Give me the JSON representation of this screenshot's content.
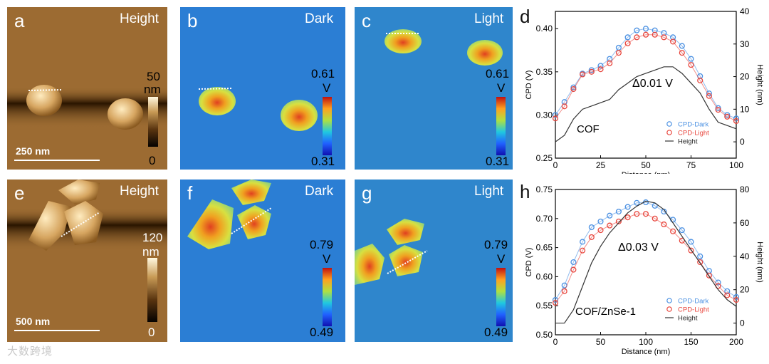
{
  "panels": {
    "a": {
      "letter": "a",
      "title": "Height",
      "cb_max": "50",
      "cb_unit": "nm",
      "cb_min": "0",
      "scale": "250 nm"
    },
    "b": {
      "letter": "b",
      "title": "Dark",
      "cb_max": "0.61",
      "cb_unit": "V",
      "cb_min": "0.31"
    },
    "c": {
      "letter": "c",
      "title": "Light",
      "cb_max": "0.61",
      "cb_unit": "V",
      "cb_min": "0.31"
    },
    "e": {
      "letter": "e",
      "title": "Height",
      "cb_max": "120",
      "cb_unit": "nm",
      "cb_min": "0",
      "scale": "500 nm"
    },
    "f": {
      "letter": "f",
      "title": "Dark",
      "cb_max": "0.79",
      "cb_unit": "V",
      "cb_min": "0.49"
    },
    "g": {
      "letter": "g",
      "title": "Light",
      "cb_max": "0.79",
      "cb_unit": "V",
      "cb_min": "0.49"
    }
  },
  "watermark": "大数跨境",
  "colors": {
    "cpd_dark": "#4a90e2",
    "cpd_light": "#e8453c",
    "height": "#333333",
    "afm_bg": "#9a6a30",
    "kpfm_bg": "#2b7ed4"
  },
  "chart_data": [
    {
      "letter": "d",
      "type": "line",
      "xlabel": "Distance (nm)",
      "ylabel": "CPD (V)",
      "y2label": "Height (nm)",
      "xlim": [
        0,
        100
      ],
      "ylim": [
        0.25,
        0.42
      ],
      "y2lim": [
        -5,
        40
      ],
      "xticks": [
        "0",
        "25",
        "50",
        "75",
        "100"
      ],
      "yticks": [
        "0.25",
        "0.30",
        "0.35",
        "0.40"
      ],
      "y2ticks": [
        "0",
        "10",
        "20",
        "30",
        "40"
      ],
      "annotation": "Δ0.01 V",
      "sample_label": "COF",
      "legend": [
        "CPD-Dark",
        "CPD-Light",
        "Height"
      ],
      "x": [
        0,
        5,
        10,
        15,
        20,
        25,
        30,
        35,
        40,
        45,
        50,
        55,
        60,
        65,
        70,
        75,
        80,
        85,
        90,
        95,
        100
      ],
      "series": [
        {
          "name": "CPD-Dark",
          "values": [
            0.3,
            0.315,
            0.332,
            0.348,
            0.352,
            0.357,
            0.365,
            0.378,
            0.39,
            0.398,
            0.4,
            0.398,
            0.395,
            0.39,
            0.38,
            0.365,
            0.345,
            0.325,
            0.308,
            0.3,
            0.296
          ]
        },
        {
          "name": "CPD-Light",
          "values": [
            0.296,
            0.31,
            0.33,
            0.347,
            0.35,
            0.353,
            0.36,
            0.372,
            0.383,
            0.39,
            0.393,
            0.393,
            0.39,
            0.385,
            0.372,
            0.358,
            0.34,
            0.322,
            0.306,
            0.298,
            0.293
          ]
        },
        {
          "name": "Height",
          "axis": "right",
          "values": [
            0,
            2,
            7,
            10,
            11,
            12,
            13,
            16,
            18,
            20,
            21,
            22,
            23,
            23,
            21,
            18,
            15,
            10,
            6,
            5,
            4
          ]
        }
      ]
    },
    {
      "letter": "h",
      "type": "line",
      "xlabel": "Distance (nm)",
      "ylabel": "CPD (V)",
      "y2label": "Height (nm)",
      "xlim": [
        0,
        200
      ],
      "ylim": [
        0.5,
        0.75
      ],
      "y2lim": [
        -7,
        80
      ],
      "xticks": [
        "0",
        "50",
        "100",
        "150",
        "200"
      ],
      "yticks": [
        "0.50",
        "0.55",
        "0.60",
        "0.65",
        "0.70",
        "0.75"
      ],
      "y2ticks": [
        "0",
        "20",
        "40",
        "60",
        "80"
      ],
      "annotation": "Δ0.03 V",
      "sample_label": "COF/ZnSe-1",
      "legend": [
        "CPD-Dark",
        "CPD-Light",
        "Height"
      ],
      "x": [
        0,
        10,
        20,
        30,
        40,
        50,
        60,
        70,
        80,
        90,
        100,
        110,
        120,
        130,
        140,
        150,
        160,
        170,
        180,
        190,
        200
      ],
      "series": [
        {
          "name": "CPD-Dark",
          "values": [
            0.56,
            0.585,
            0.625,
            0.66,
            0.685,
            0.695,
            0.705,
            0.712,
            0.72,
            0.727,
            0.728,
            0.722,
            0.712,
            0.698,
            0.68,
            0.66,
            0.635,
            0.61,
            0.59,
            0.575,
            0.565
          ]
        },
        {
          "name": "CPD-Light",
          "values": [
            0.555,
            0.575,
            0.612,
            0.645,
            0.668,
            0.68,
            0.688,
            0.695,
            0.702,
            0.708,
            0.708,
            0.7,
            0.69,
            0.678,
            0.662,
            0.645,
            0.625,
            0.602,
            0.584,
            0.568,
            0.56
          ]
        },
        {
          "name": "Height",
          "axis": "right",
          "values": [
            0,
            0,
            8,
            22,
            36,
            46,
            54,
            60,
            66,
            70,
            73,
            72,
            68,
            60,
            52,
            44,
            36,
            28,
            20,
            14,
            10
          ]
        }
      ]
    }
  ]
}
